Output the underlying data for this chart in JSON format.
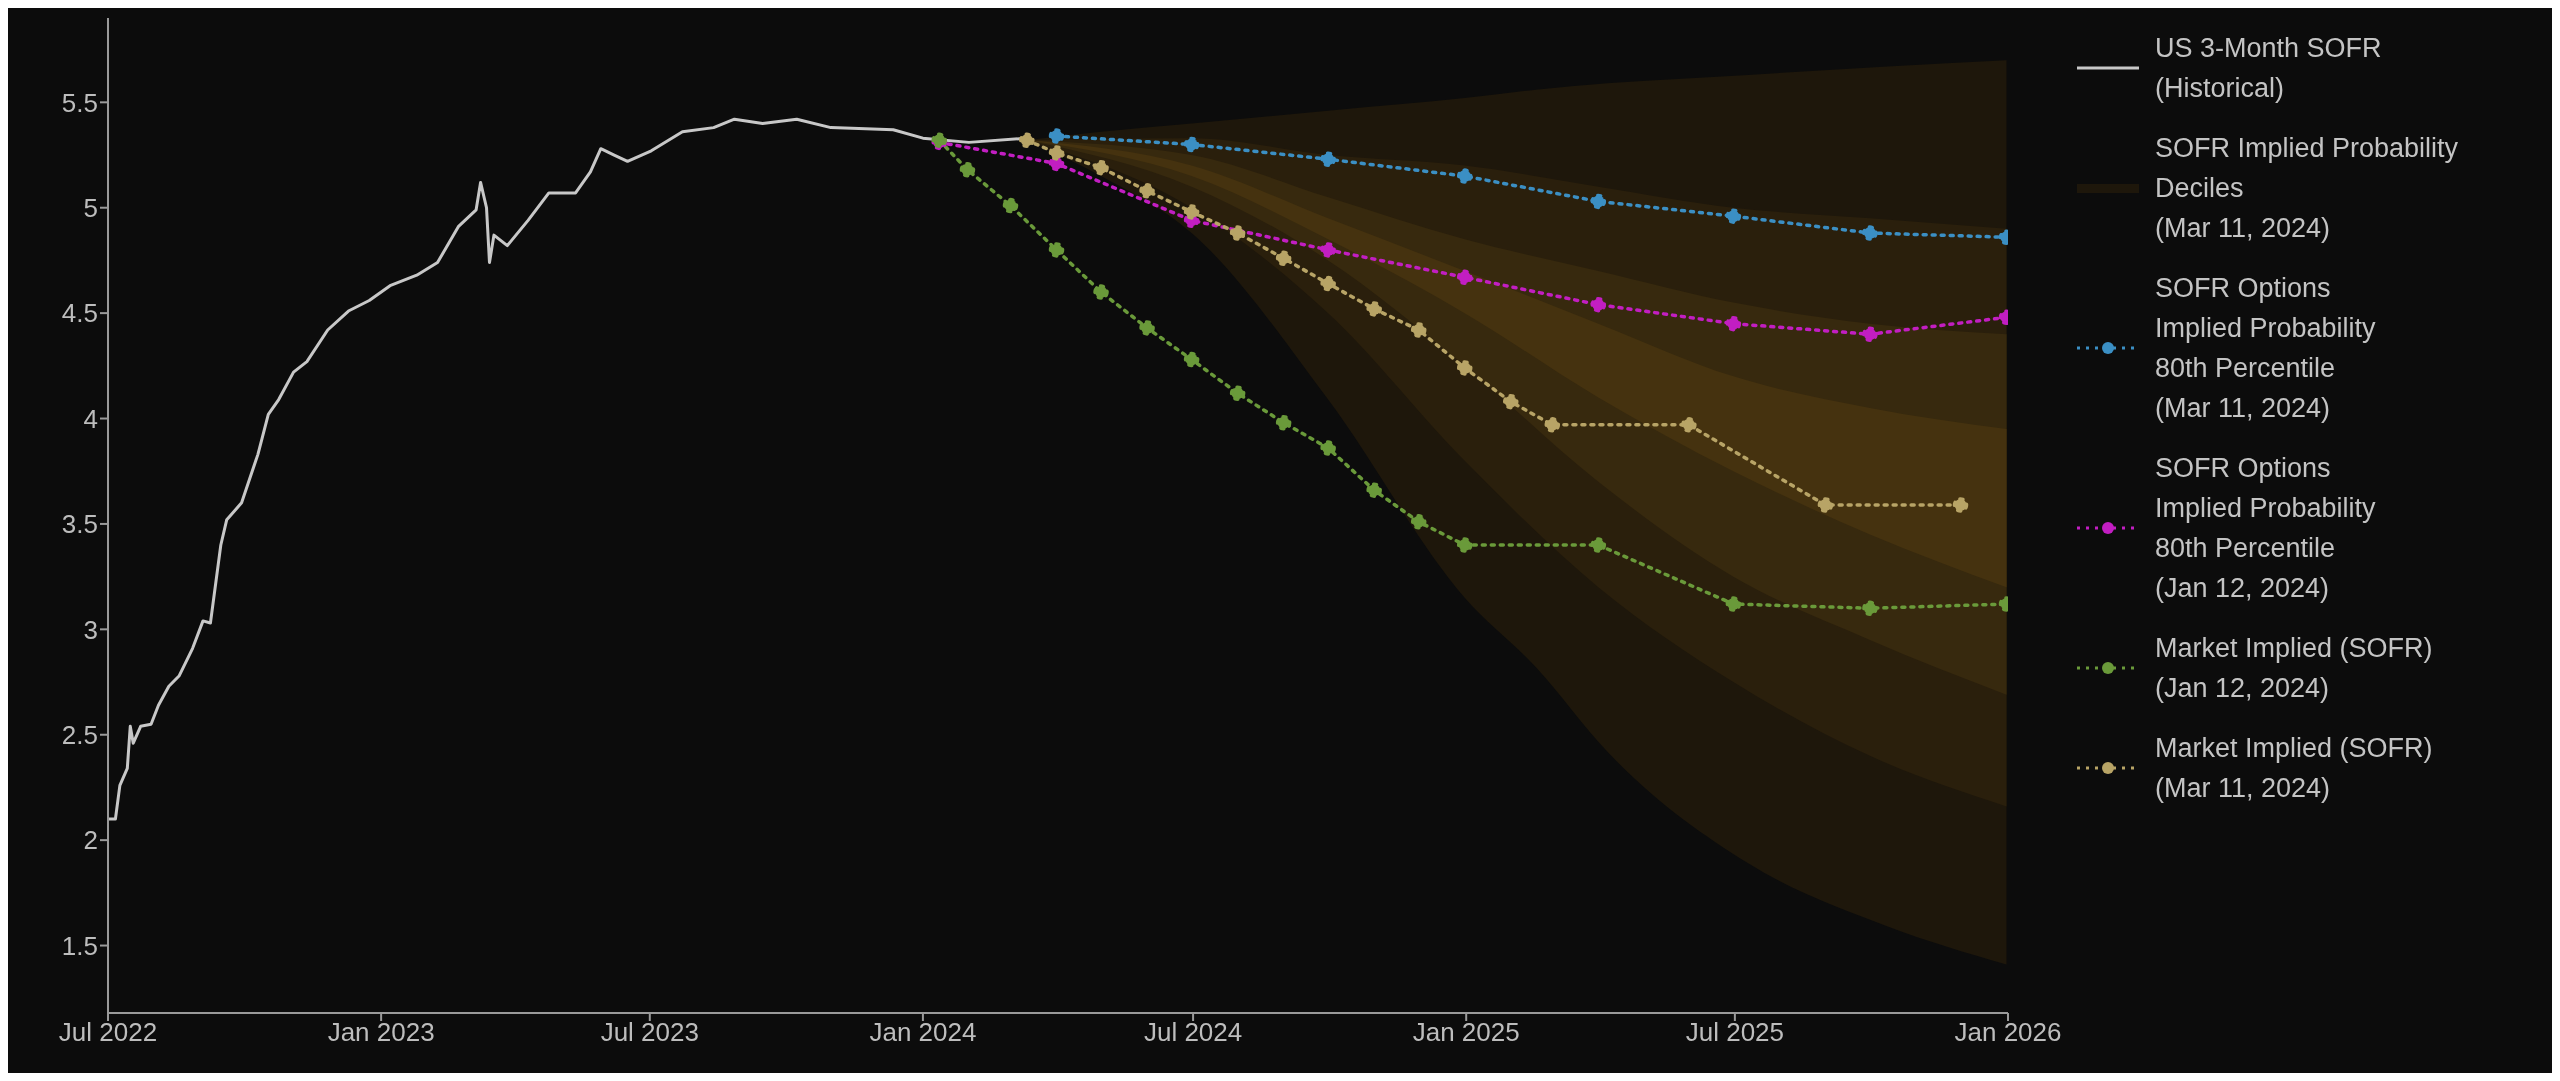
{
  "chart_data": {
    "type": "line",
    "xlim": [
      "2022-07-01",
      "2026-01-01"
    ],
    "ylim": [
      1.18,
      5.9
    ],
    "xticks": [
      {
        "value": "2022-07-01",
        "label": "Jul 2022"
      },
      {
        "value": "2023-01-01",
        "label": "Jan 2023"
      },
      {
        "value": "2023-07-01",
        "label": "Jul 2023"
      },
      {
        "value": "2024-01-01",
        "label": "Jan 2024"
      },
      {
        "value": "2024-07-01",
        "label": "Jul 2024"
      },
      {
        "value": "2025-01-01",
        "label": "Jan 2025"
      },
      {
        "value": "2025-07-01",
        "label": "Jul 2025"
      },
      {
        "value": "2026-01-01",
        "label": "Jan 2026"
      }
    ],
    "yticks": [
      1.5,
      2,
      2.5,
      3,
      3.5,
      4,
      4.5,
      5,
      5.5
    ],
    "grid": false,
    "legend": "right",
    "series": [
      {
        "type": "line",
        "name": "SOFR Implied Probability Deciles\n(Mar 11, 2024)",
        "color": "#1e170b",
        "x": [
          "2024-03-11",
          "2024-04-30",
          "2024-06-30",
          "2024-09-30",
          "2024-12-31",
          "2025-02-17",
          "2025-04-06",
          "2025-07-10",
          "2025-10-12",
          "2025-12-31"
        ],
        "values": [
          null,
          null,
          null,
          null,
          null,
          null,
          null,
          null,
          null,
          null
        ],
        "lower": [
          5.32,
          5.15,
          4.88,
          4.09,
          3.15,
          2.82,
          2.42,
          1.89,
          1.59,
          1.41
        ],
        "upper": [
          5.32,
          5.36,
          5.4,
          5.46,
          5.52,
          5.56,
          5.59,
          5.63,
          5.67,
          5.7
        ]
      },
      {
        "type": "line",
        "color": "#2a1f0c",
        "x": [
          "2024-03-11",
          "2024-06-30",
          "2024-09-30",
          "2024-12-31",
          "2025-03-31",
          "2025-06-30",
          "2025-09-30",
          "2025-12-31"
        ],
        "values": [
          null,
          null,
          null,
          null,
          null,
          null,
          null,
          null
        ],
        "lower": [
          5.32,
          5.0,
          4.5,
          3.8,
          3.2,
          2.75,
          2.4,
          2.16
        ],
        "upper": [
          5.32,
          5.33,
          5.25,
          5.2,
          5.1,
          5.0,
          4.95,
          4.9
        ]
      },
      {
        "type": "line",
        "color": "#37290e",
        "x": [
          "2024-03-11",
          "2024-06-30",
          "2024-09-30",
          "2024-12-31",
          "2025-03-31",
          "2025-06-30",
          "2025-09-30",
          "2025-12-31"
        ],
        "values": [
          null,
          null,
          null,
          null,
          null,
          null,
          null,
          null
        ],
        "lower": [
          5.32,
          5.1,
          4.75,
          4.25,
          3.7,
          3.25,
          2.95,
          2.69
        ],
        "upper": [
          5.32,
          5.25,
          5.05,
          4.85,
          4.7,
          4.55,
          4.45,
          4.4
        ]
      },
      {
        "type": "line",
        "color": "#45320f",
        "x": [
          "2024-03-11",
          "2024-06-30",
          "2024-09-30",
          "2024-12-31",
          "2025-03-31",
          "2025-06-30",
          "2025-09-30",
          "2025-12-31"
        ],
        "values": [
          null,
          null,
          null,
          null,
          null,
          null,
          null,
          null
        ],
        "lower": [
          5.32,
          5.15,
          4.85,
          4.5,
          4.1,
          3.75,
          3.45,
          3.2
        ],
        "upper": [
          5.32,
          5.2,
          4.95,
          4.7,
          4.45,
          4.2,
          4.05,
          3.95
        ]
      },
      {
        "type": "line",
        "name": "US 3-Month SOFR\n(Historical)",
        "color": "#c8c8c8",
        "marker": "none",
        "line_style": "solid",
        "x": [
          "2022-07-01",
          "2022-07-06",
          "2022-07-09",
          "2022-07-14",
          "2022-07-16",
          "2022-07-18",
          "2022-07-23",
          "2022-07-30",
          "2022-08-04",
          "2022-08-11",
          "2022-08-18",
          "2022-08-27",
          "2022-09-03",
          "2022-09-08",
          "2022-09-15",
          "2022-09-19",
          "2022-09-29",
          "2022-10-10",
          "2022-10-17",
          "2022-10-24",
          "2022-11-03",
          "2022-11-12",
          "2022-11-26",
          "2022-12-10",
          "2022-12-24",
          "2023-01-07",
          "2023-01-25",
          "2023-02-08",
          "2023-02-22",
          "2023-03-06",
          "2023-03-09",
          "2023-03-13",
          "2023-03-15",
          "2023-03-18",
          "2023-03-27",
          "2023-04-10",
          "2023-04-24",
          "2023-05-12",
          "2023-05-22",
          "2023-05-29",
          "2023-06-07",
          "2023-06-16",
          "2023-07-02",
          "2023-07-23",
          "2023-08-13",
          "2023-08-27",
          "2023-09-15",
          "2023-10-08",
          "2023-10-31",
          "2023-12-12",
          "2024-01-01",
          "2024-02-01",
          "2024-03-11"
        ],
        "values": [
          2.1,
          2.1,
          2.26,
          2.34,
          2.54,
          2.46,
          2.54,
          2.55,
          2.64,
          2.73,
          2.78,
          2.91,
          3.04,
          3.03,
          3.4,
          3.52,
          3.6,
          3.83,
          4.02,
          4.09,
          4.22,
          4.27,
          4.42,
          4.51,
          4.56,
          4.63,
          4.68,
          4.74,
          4.91,
          4.99,
          5.12,
          5.0,
          4.74,
          4.87,
          4.82,
          4.94,
          5.07,
          5.07,
          5.17,
          5.28,
          5.25,
          5.22,
          5.27,
          5.36,
          5.38,
          5.42,
          5.4,
          5.42,
          5.38,
          5.37,
          5.33,
          5.31,
          5.33
        ]
      },
      {
        "type": "line",
        "name": "SOFR Options\nImplied Probability\n80th Percentile\n(Mar 11, 2024)",
        "color": "#3b8fc4",
        "marker": "circle",
        "line_style": "dotted",
        "x": [
          "2024-03-31",
          "2024-06-30",
          "2024-09-30",
          "2024-12-31",
          "2025-03-31",
          "2025-06-30",
          "2025-09-30",
          "2025-12-31"
        ],
        "values": [
          5.34,
          5.3,
          5.23,
          5.15,
          5.03,
          4.96,
          4.88,
          4.86
        ]
      },
      {
        "type": "line",
        "name": "SOFR Options\nImplied Probability\n80th Percentile\n(Jan 12, 2024)",
        "color": "#c21ec2",
        "marker": "circle",
        "line_style": "dotted",
        "x": [
          "2024-01-12",
          "2024-03-31",
          "2024-06-30",
          "2024-09-30",
          "2024-12-31",
          "2025-03-31",
          "2025-06-30",
          "2025-09-30",
          "2025-12-31"
        ],
        "values": [
          5.31,
          5.21,
          4.94,
          4.8,
          4.67,
          4.54,
          4.45,
          4.4,
          4.48
        ]
      },
      {
        "type": "line",
        "name": "Market Implied (SOFR)\n(Jan 12, 2024)",
        "color": "#6a9a3a",
        "marker": "circle",
        "line_style": "dotted",
        "x": [
          "2024-01-12",
          "2024-01-31",
          "2024-02-29",
          "2024-03-31",
          "2024-04-30",
          "2024-05-31",
          "2024-06-30",
          "2024-07-31",
          "2024-08-31",
          "2024-09-30",
          "2024-10-31",
          "2024-11-30",
          "2024-12-31",
          "2025-03-31",
          "2025-06-30",
          "2025-09-30",
          "2025-12-31"
        ],
        "values": [
          5.32,
          5.18,
          5.01,
          4.8,
          4.6,
          4.43,
          4.28,
          4.12,
          3.98,
          3.86,
          3.66,
          3.51,
          3.4,
          3.4,
          3.12,
          3.1,
          3.12
        ]
      },
      {
        "type": "line",
        "name": "Market Implied (SOFR)\n(Mar 11, 2024)",
        "color": "#b8a466",
        "marker": "circle",
        "line_style": "dotted",
        "x": [
          "2024-03-11",
          "2024-03-31",
          "2024-04-30",
          "2024-05-31",
          "2024-06-30",
          "2024-07-31",
          "2024-08-31",
          "2024-09-30",
          "2024-10-31",
          "2024-11-30",
          "2024-12-31",
          "2025-01-31",
          "2025-02-28",
          "2025-05-31",
          "2025-08-31",
          "2025-11-30"
        ],
        "values": [
          5.32,
          5.26,
          5.19,
          5.08,
          4.98,
          4.88,
          4.76,
          4.64,
          4.52,
          4.42,
          4.24,
          4.08,
          3.97,
          3.97,
          3.59,
          3.59
        ]
      }
    ]
  }
}
